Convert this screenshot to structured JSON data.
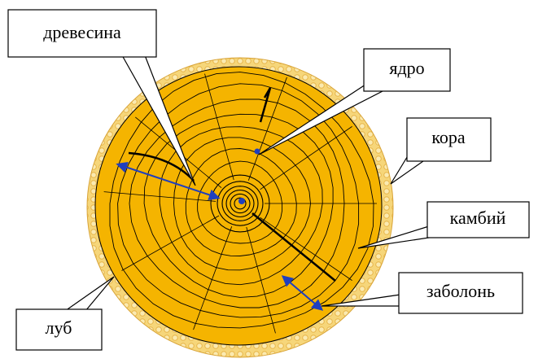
{
  "callouts": [
    {
      "label": "древесина"
    },
    {
      "label": "ядро"
    },
    {
      "label": "кора"
    },
    {
      "label": "камбий"
    },
    {
      "label": "заболонь"
    },
    {
      "label": "луб"
    }
  ]
}
